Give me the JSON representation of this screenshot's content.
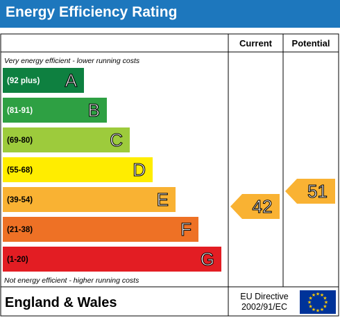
{
  "title": "Energy Efficiency Rating",
  "chart_data": {
    "type": "energy-rating",
    "columns": [
      "Current",
      "Potential"
    ],
    "top_note": "Very energy efficient - lower running costs",
    "bottom_note": "Not energy efficient - higher running costs",
    "bands": [
      {
        "letter": "A",
        "range": "(92 plus)",
        "color": "#0e8040",
        "text_color": "#ffffff"
      },
      {
        "letter": "B",
        "range": "(81-91)",
        "color": "#2ea043",
        "text_color": "#ffffff"
      },
      {
        "letter": "C",
        "range": "(69-80)",
        "color": "#9dcb3c",
        "text_color": "#000000"
      },
      {
        "letter": "D",
        "range": "(55-68)",
        "color": "#ffed00",
        "text_color": "#000000"
      },
      {
        "letter": "E",
        "range": "(39-54)",
        "color": "#f9b233",
        "text_color": "#000000"
      },
      {
        "letter": "F",
        "range": "(21-38)",
        "color": "#ee7125",
        "text_color": "#000000"
      },
      {
        "letter": "G",
        "range": "(1-20)",
        "color": "#e31d23",
        "text_color": "#000000"
      }
    ],
    "current": {
      "value": 42,
      "band": "E",
      "color": "#f9b233"
    },
    "potential": {
      "value": 51,
      "band": "E",
      "color": "#f9b233"
    }
  },
  "footer": {
    "region": "England & Wales",
    "directive_line1": "EU Directive",
    "directive_line2": "2002/91/EC"
  },
  "flag": {
    "color": "#003399",
    "star_color": "#ffcc00"
  }
}
